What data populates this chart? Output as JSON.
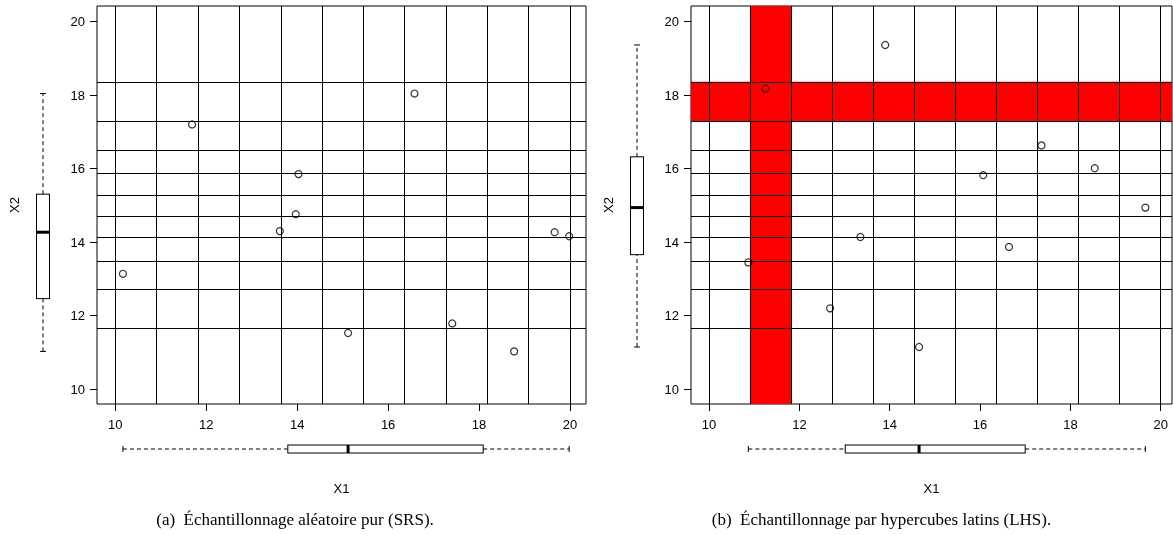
{
  "chart_data": [
    {
      "type": "scatter",
      "title": "(a)  Échantillonnage aléatoire pur (SRS).",
      "xlabel": "X1",
      "ylabel": "X2",
      "xlim": [
        9.6,
        20.35
      ],
      "ylim": [
        9.6,
        20.42
      ],
      "xticks": [
        10,
        12,
        14,
        16,
        18,
        20
      ],
      "yticks": [
        10,
        12,
        14,
        16,
        18,
        20
      ],
      "marker": "circle",
      "series": [
        {
          "color": "#000000",
          "x": [
            10.17,
            11.69,
            13.62,
            13.97,
            14.03,
            15.12,
            16.58,
            17.41,
            18.77,
            19.66,
            19.98
          ],
          "values": [
            13.14,
            17.2,
            14.3,
            14.76,
            15.85,
            11.53,
            18.04,
            11.79,
            11.03,
            14.27,
            14.16
          ]
        }
      ],
      "ref_lines": [
        {
          "axis": "x",
          "value": 10
        },
        {
          "axis": "x",
          "value": 10.91
        },
        {
          "axis": "x",
          "value": 11.82
        },
        {
          "axis": "x",
          "value": 12.73
        },
        {
          "axis": "x",
          "value": 13.64
        },
        {
          "axis": "x",
          "value": 14.55
        },
        {
          "axis": "x",
          "value": 15.45
        },
        {
          "axis": "x",
          "value": 16.36
        },
        {
          "axis": "x",
          "value": 17.27
        },
        {
          "axis": "x",
          "value": 18.18
        },
        {
          "axis": "x",
          "value": 19.09
        },
        {
          "axis": "x",
          "value": 20
        },
        {
          "axis": "y",
          "value": 11.65
        },
        {
          "axis": "y",
          "value": 12.72
        },
        {
          "axis": "y",
          "value": 13.49
        },
        {
          "axis": "y",
          "value": 14.12
        },
        {
          "axis": "y",
          "value": 14.71
        },
        {
          "axis": "y",
          "value": 15.28
        },
        {
          "axis": "y",
          "value": 15.87
        },
        {
          "axis": "y",
          "value": 16.51
        },
        {
          "axis": "y",
          "value": 17.28
        },
        {
          "axis": "y",
          "value": 18.36
        }
      ]
    },
    {
      "type": "scatter",
      "title": "(b)  Échantillonnage par hypercubes latins (LHS).",
      "xlabel": "X1",
      "ylabel": "X2",
      "xlim": [
        9.6,
        20.25
      ],
      "ylim": [
        9.6,
        20.42
      ],
      "xticks": [
        10,
        12,
        14,
        16,
        18,
        20
      ],
      "yticks": [
        10,
        12,
        14,
        16,
        18,
        20
      ],
      "marker": "circle",
      "series": [
        {
          "color": "#000000",
          "x": [
            10.87,
            11.25,
            12.68,
            13.35,
            13.9,
            14.65,
            16.07,
            16.64,
            17.36,
            18.54,
            19.66
          ],
          "values": [
            13.45,
            18.17,
            12.2,
            14.14,
            19.36,
            11.15,
            15.82,
            13.87,
            16.63,
            16.01,
            14.94
          ]
        }
      ],
      "ref_lines": [
        {
          "axis": "x",
          "value": 10
        },
        {
          "axis": "x",
          "value": 10.91
        },
        {
          "axis": "x",
          "value": 11.82
        },
        {
          "axis": "x",
          "value": 12.73
        },
        {
          "axis": "x",
          "value": 13.64
        },
        {
          "axis": "x",
          "value": 14.55
        },
        {
          "axis": "x",
          "value": 15.45
        },
        {
          "axis": "x",
          "value": 16.36
        },
        {
          "axis": "x",
          "value": 17.27
        },
        {
          "axis": "x",
          "value": 18.18
        },
        {
          "axis": "x",
          "value": 19.09
        },
        {
          "axis": "x",
          "value": 20
        },
        {
          "axis": "y",
          "value": 11.65
        },
        {
          "axis": "y",
          "value": 12.72
        },
        {
          "axis": "y",
          "value": 13.49
        },
        {
          "axis": "y",
          "value": 14.12
        },
        {
          "axis": "y",
          "value": 14.71
        },
        {
          "axis": "y",
          "value": 15.28
        },
        {
          "axis": "y",
          "value": 15.87
        },
        {
          "axis": "y",
          "value": 16.51
        },
        {
          "axis": "y",
          "value": 17.28
        },
        {
          "axis": "y",
          "value": 18.36
        }
      ],
      "bands": [
        {
          "axis": "x",
          "from": 10.91,
          "to": 11.82,
          "color": "#ff0000"
        },
        {
          "axis": "y",
          "from": 17.28,
          "to": 18.36,
          "color": "#ff0000"
        }
      ]
    }
  ]
}
